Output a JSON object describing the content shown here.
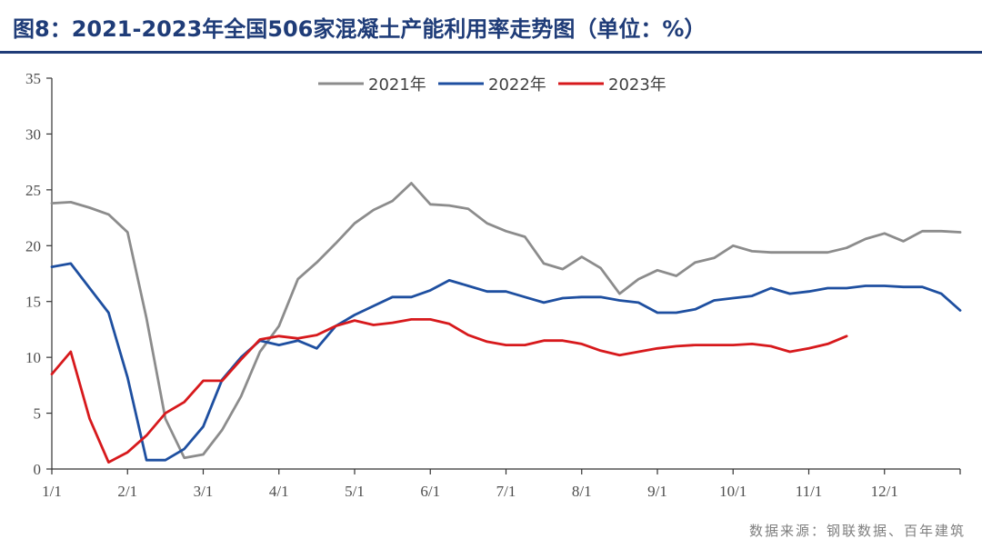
{
  "title": "图8：2021-2023年全国506家混凝土产能利用率走势图（单位：%）",
  "source": "数据来源：钢联数据、百年建筑",
  "colors": {
    "title": "#1f3c78",
    "title_rule": "#1f3c78",
    "axis": "#333333",
    "tick_text": "#4d4d4d",
    "source_text": "#7f7f7f"
  },
  "chart_data": {
    "type": "line",
    "title": "图8：2021-2023年全国506家混凝土产能利用率走势图（单位：%）",
    "xlabel": "",
    "ylabel": "",
    "ylim": [
      0,
      35
    ],
    "yticks": [
      0,
      5,
      10,
      15,
      20,
      25,
      30,
      35
    ],
    "x_tick_labels": [
      "1/1",
      "2/1",
      "3/1",
      "4/1",
      "5/1",
      "6/1",
      "7/1",
      "8/1",
      "9/1",
      "10/1",
      "11/1",
      "12/1"
    ],
    "x_unit": "week",
    "x_range": [
      0,
      48
    ],
    "x_tick_positions": [
      0,
      4,
      8,
      12,
      16,
      20,
      24,
      28,
      32,
      36,
      40,
      44
    ],
    "grid": false,
    "legend_position": "top-center",
    "series": [
      {
        "name": "2021年",
        "color": "#8c8c8c",
        "x": [
          0,
          1,
          2,
          3,
          4,
          5,
          6,
          7,
          8,
          9,
          10,
          11,
          12,
          13,
          14,
          15,
          16,
          17,
          18,
          19,
          20,
          21,
          22,
          23,
          24,
          25,
          26,
          27,
          28,
          29,
          30,
          31,
          32,
          33,
          34,
          35,
          36,
          37,
          38,
          39,
          40,
          41,
          42,
          43,
          44,
          45,
          46,
          47,
          48
        ],
        "values": [
          23.8,
          23.9,
          23.4,
          22.8,
          21.2,
          13.5,
          4.5,
          1.0,
          1.3,
          3.5,
          6.5,
          10.5,
          12.8,
          17.0,
          18.5,
          20.2,
          22.0,
          23.2,
          24.0,
          25.6,
          23.7,
          23.6,
          23.3,
          22.0,
          21.3,
          20.8,
          18.4,
          17.9,
          19.0,
          18.0,
          15.7,
          17.0,
          17.8,
          17.3,
          18.5,
          18.9,
          20.0,
          19.5,
          19.4,
          19.4,
          19.4,
          19.4,
          19.8,
          20.6,
          21.1,
          20.4,
          21.3,
          21.3,
          21.2
        ]
      },
      {
        "name": "2022年",
        "color": "#1e4fa0",
        "x": [
          0,
          1,
          2,
          3,
          4,
          5,
          6,
          7,
          8,
          9,
          10,
          11,
          12,
          13,
          14,
          15,
          16,
          17,
          18,
          19,
          20,
          21,
          22,
          23,
          24,
          25,
          26,
          27,
          28,
          29,
          30,
          31,
          32,
          33,
          34,
          35,
          36,
          37,
          38,
          39,
          40,
          41,
          42,
          43,
          44,
          45,
          46,
          47,
          48
        ],
        "values": [
          18.1,
          18.4,
          16.2,
          14.0,
          8.2,
          0.8,
          0.8,
          1.8,
          3.8,
          8.0,
          10.0,
          11.5,
          11.1,
          11.5,
          10.8,
          12.8,
          13.8,
          14.6,
          15.4,
          15.4,
          16.0,
          16.9,
          16.4,
          15.9,
          15.9,
          15.4,
          14.9,
          15.3,
          15.4,
          15.4,
          15.1,
          14.9,
          14.0,
          14.0,
          14.3,
          15.1,
          15.3,
          15.5,
          16.2,
          15.7,
          15.9,
          16.2,
          16.2,
          16.4,
          16.4,
          16.3,
          16.3,
          15.7,
          14.2
        ]
      },
      {
        "name": "2023年",
        "color": "#d7191c",
        "x": [
          0,
          1,
          2,
          3,
          4,
          5,
          6,
          7,
          8,
          9,
          10,
          11,
          12,
          13,
          14,
          15,
          16,
          17,
          18,
          19,
          20,
          21,
          22,
          23,
          24,
          25,
          26,
          27,
          28,
          29,
          30,
          31,
          32,
          33,
          34,
          35,
          36,
          37,
          38,
          39,
          40,
          41,
          42,
          43,
          44,
          45,
          46,
          47,
          48
        ],
        "values": [
          8.5,
          10.5,
          4.5,
          0.6,
          1.5,
          3.0,
          5.0,
          6.0,
          7.9,
          7.9,
          9.8,
          11.6,
          11.9,
          11.7,
          12.0,
          12.8,
          13.3,
          12.9,
          13.1,
          13.4,
          13.4,
          13.0,
          12.0,
          11.4,
          11.1,
          11.1,
          11.5,
          11.5,
          11.2,
          10.6,
          10.2,
          10.5,
          10.8,
          11.0,
          11.1,
          11.1,
          11.1,
          11.2,
          11.0,
          10.5,
          10.8,
          11.2,
          11.9,
          null,
          null,
          null,
          null,
          null,
          null
        ]
      }
    ]
  }
}
